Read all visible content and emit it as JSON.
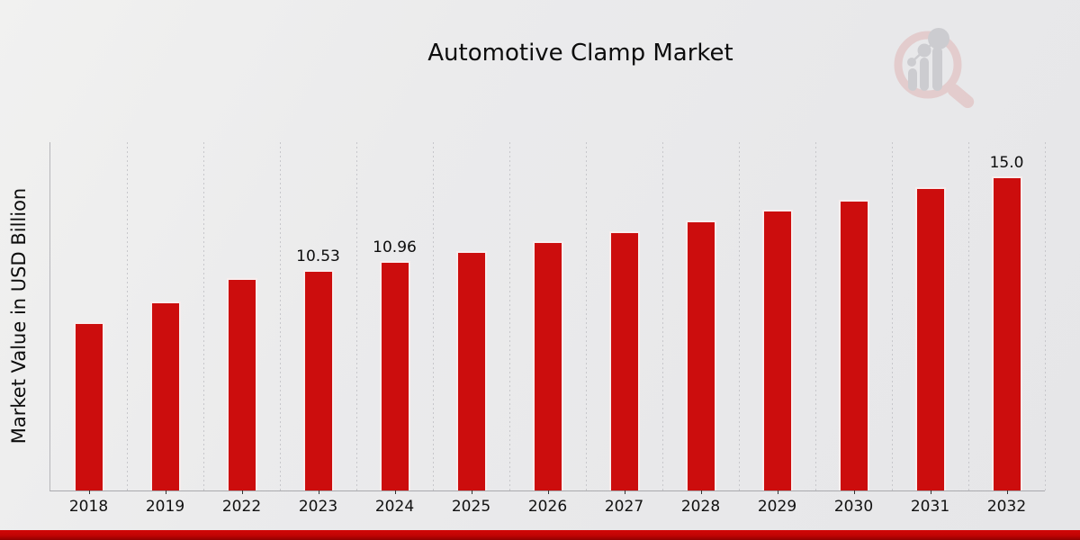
{
  "header": {
    "title": "Automotive Clamp Market",
    "watermark_icon": "magnifier-bar-chart-logo"
  },
  "chart_data": {
    "type": "bar",
    "title": "Automotive Clamp Market",
    "xlabel": "",
    "ylabel": "Market Value in USD Billion",
    "categories": [
      "2018",
      "2019",
      "2022",
      "2023",
      "2024",
      "2025",
      "2026",
      "2027",
      "2028",
      "2029",
      "2030",
      "2031",
      "2032"
    ],
    "values": [
      8.03,
      9.03,
      10.15,
      10.53,
      10.96,
      11.42,
      11.89,
      12.39,
      12.9,
      13.4,
      13.9,
      14.5,
      15.0
    ],
    "data_labels": [
      "",
      "",
      "",
      "10.53",
      "10.96",
      "",
      "",
      "",
      "",
      "",
      "",
      "",
      "15.0"
    ],
    "ylim": [
      0,
      16.64
    ],
    "grid": "vertical-dashed-category-boundaries",
    "legend": "none",
    "bar_color": "#cc0d0d",
    "bar_border_color": "#fafafa",
    "gridline_color": "#c7c7cb",
    "axis_color": "#a9a9ad",
    "footer_band_color": "#c10404",
    "watermark_ring_color": "#e2c6c6",
    "watermark_bar_color": "#c6c6ca"
  }
}
